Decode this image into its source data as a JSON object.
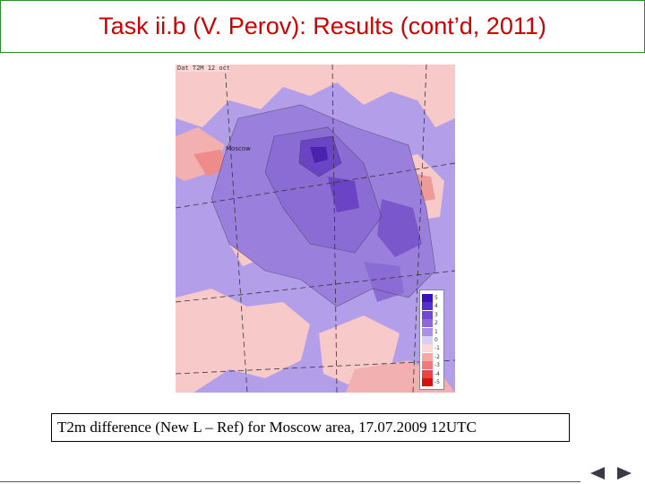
{
  "slide": {
    "title": "Task ii.b (V. Perov): Results (cont’d, 2011)",
    "caption": "T2m difference (New L – Ref) for Moscow area, 17.07.2009 12UTC"
  },
  "figure": {
    "header_text": "Dat T2M 12 oct",
    "city_label": "Moscow",
    "legend": {
      "labels": [
        "5",
        "4",
        "3",
        "2",
        "1",
        "0",
        "-1",
        "-2",
        "-3",
        "-4",
        "-5"
      ],
      "colors": [
        "#3a10b8",
        "#5530c8",
        "#7048d4",
        "#8c68de",
        "#a890e8",
        "#d8cff5",
        "#fbd6d6",
        "#f5a8a8",
        "#ef7878",
        "#e64545",
        "#d81010"
      ]
    }
  },
  "navigation": {
    "prev_icon": "triangle-left-icon",
    "next_icon": "triangle-right-icon"
  },
  "colors": {
    "title": "#cc0000",
    "title_border": "#2e8b2e",
    "nav_arrow": "#3a3a44"
  }
}
